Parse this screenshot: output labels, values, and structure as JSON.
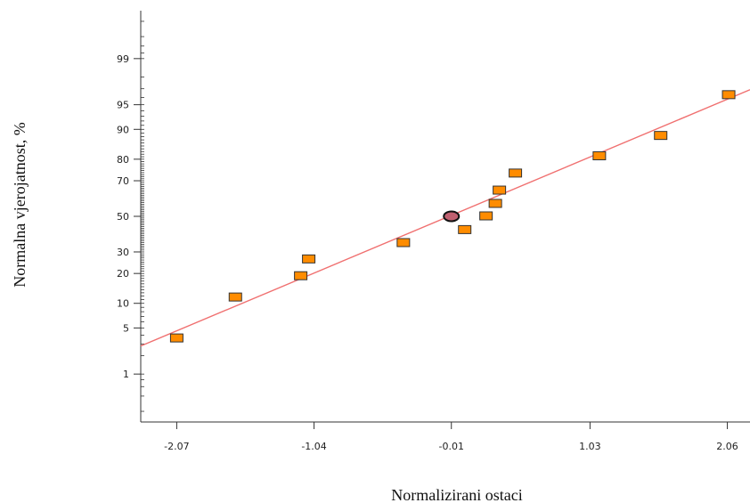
{
  "chart_data": {
    "type": "scatter",
    "title": "",
    "xlabel": "Normalizirani ostaci",
    "ylabel": "Normalna vjerojatnost, %",
    "xlim": [
      -2.34,
      2.23
    ],
    "xticks": [
      -2.07,
      -1.04,
      -0.01,
      1.03,
      2.06
    ],
    "xtick_labels": [
      "-2.07",
      "-1.04",
      "-0.01",
      "1.03",
      "2.06"
    ],
    "ylim_percent": [
      0.12,
      99.88
    ],
    "yscale": "normal-probability",
    "yticks": [
      1,
      5,
      10,
      20,
      30,
      50,
      70,
      80,
      90,
      95,
      99
    ],
    "ytick_labels": [
      "1",
      "5",
      "10",
      "20",
      "30",
      "50",
      "70",
      "80",
      "90",
      "95",
      "99"
    ],
    "grid": false,
    "legend": "none",
    "colors": {
      "point_fill": "#ff8c00",
      "point_stroke": "#333333",
      "highlight_fill": "#c06070",
      "line": "#f07070",
      "axis": "#333333"
    },
    "points": [
      {
        "x": -2.07,
        "y": 3.6
      },
      {
        "x": -1.63,
        "y": 11.6
      },
      {
        "x": -1.14,
        "y": 18.9
      },
      {
        "x": -1.08,
        "y": 26.3
      },
      {
        "x": -0.37,
        "y": 34.7
      },
      {
        "x": 0.09,
        "y": 42.0
      },
      {
        "x": 0.25,
        "y": 50.0
      },
      {
        "x": 0.32,
        "y": 57.3
      },
      {
        "x": 0.35,
        "y": 64.8
      },
      {
        "x": 0.47,
        "y": 73.6
      },
      {
        "x": 1.1,
        "y": 81.2
      },
      {
        "x": 1.56,
        "y": 88.2
      },
      {
        "x": 2.07,
        "y": 96.3
      }
    ],
    "highlight_point": {
      "x": -0.01,
      "y": 50.0
    },
    "fit_line": {
      "x_start": -2.34,
      "y_start": 2.8,
      "x_end": 2.23,
      "y_end": 96.9
    }
  }
}
